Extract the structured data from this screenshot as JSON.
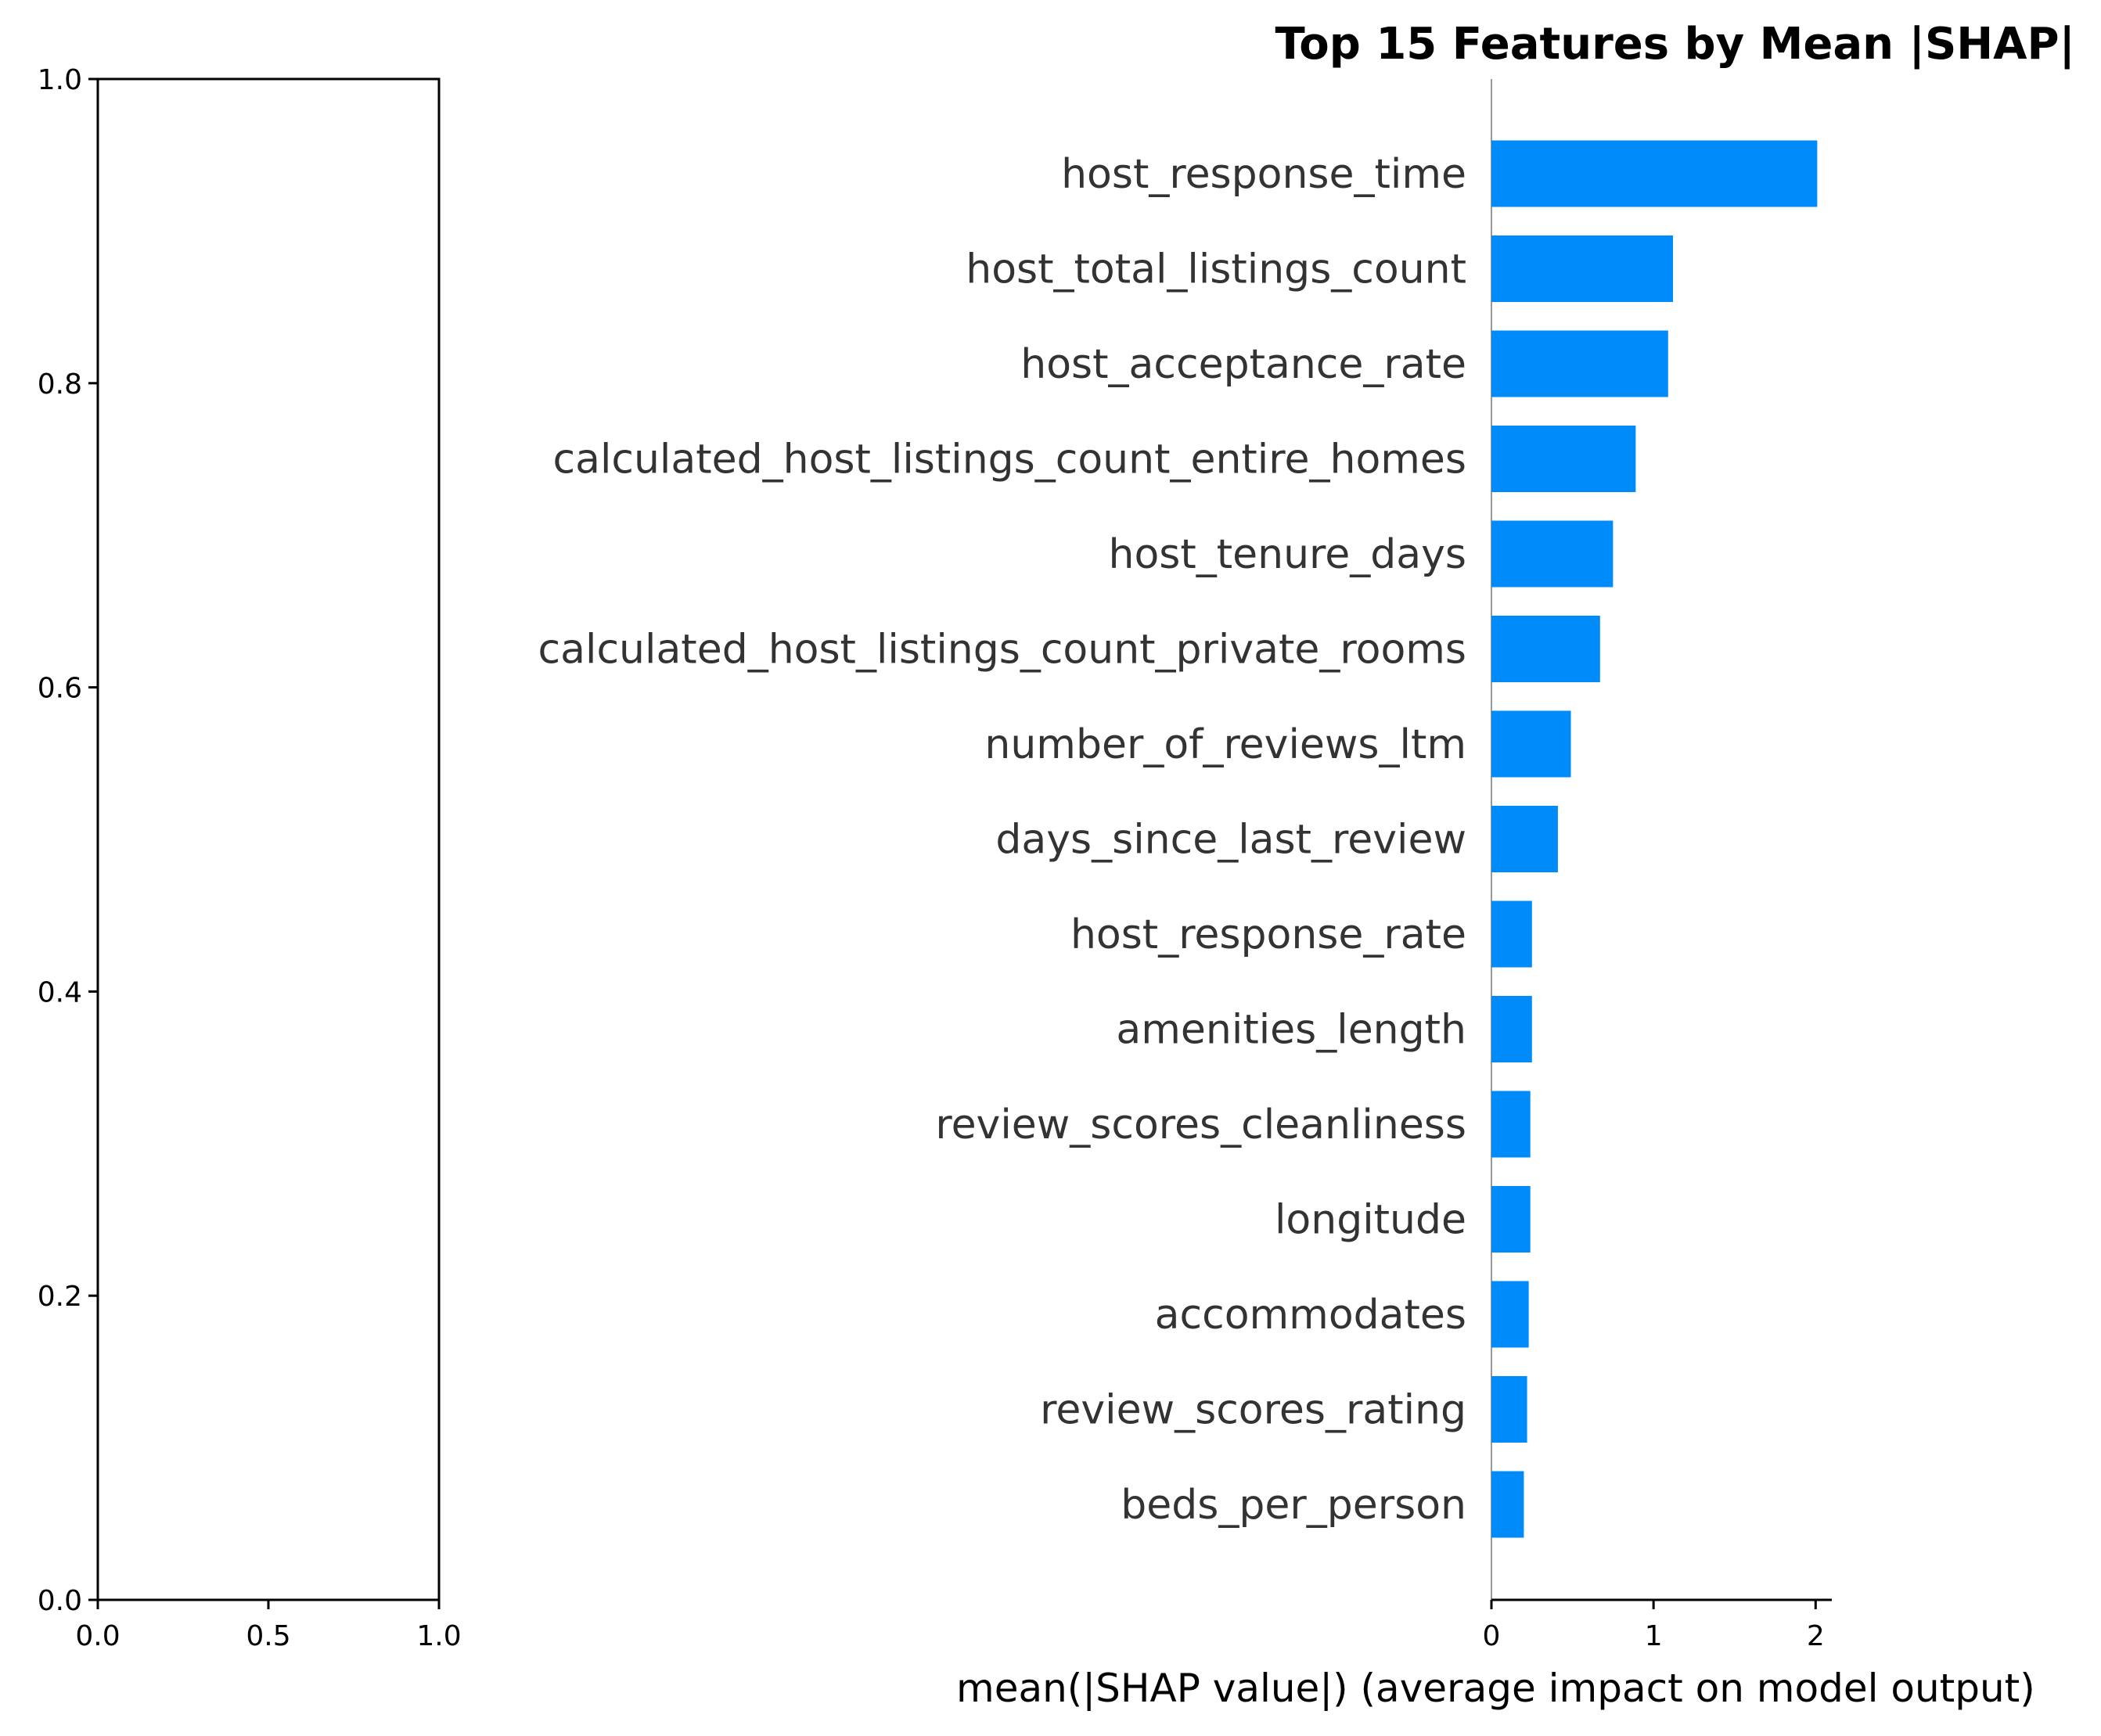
{
  "chart_data": [
    {
      "type": "empty-axes",
      "x_ticks": [
        "0.0",
        "0.5",
        "1.0"
      ],
      "y_ticks": [
        "0.0",
        "0.2",
        "0.4",
        "0.6",
        "0.8",
        "1.0"
      ],
      "xlim": [
        0,
        1
      ],
      "ylim": [
        0,
        1
      ]
    },
    {
      "type": "bar",
      "orientation": "horizontal",
      "title": "Top 15 Features by Mean |SHAP|",
      "xlabel": "mean(|SHAP value|) (average impact on model output)",
      "bar_color": "#008bfb",
      "xlim": [
        0,
        2.1
      ],
      "x_ticks": [
        "0",
        "1",
        "2"
      ],
      "categories": [
        "host_response_time",
        "host_total_listings_count",
        "host_acceptance_rate",
        "calculated_host_listings_count_entire_homes",
        "host_tenure_days",
        "calculated_host_listings_count_private_rooms",
        "number_of_reviews_ltm",
        "days_since_last_review",
        "host_response_rate",
        "amenities_length",
        "review_scores_cleanliness",
        "longitude",
        "accommodates",
        "review_scores_rating",
        "beds_per_person"
      ],
      "values": [
        2.01,
        1.12,
        1.09,
        0.89,
        0.75,
        0.67,
        0.49,
        0.41,
        0.25,
        0.25,
        0.24,
        0.24,
        0.23,
        0.22,
        0.2
      ]
    }
  ]
}
